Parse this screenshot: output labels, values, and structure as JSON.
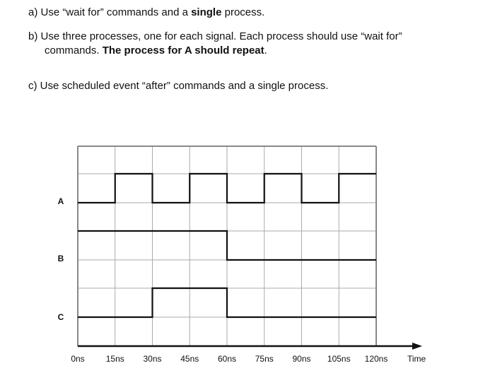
{
  "questions": {
    "a": {
      "pre": "a) Use “wait for” commands and a ",
      "bold": "single",
      "post": " process."
    },
    "b": {
      "line1": "b) Use three processes, one for each signal. Each process should use “wait for”",
      "line2_pre": "commands. ",
      "line2_bold": "The process for A should repeat",
      "line2_post": "."
    },
    "c": {
      "text": "c) Use scheduled event “after” commands and a single process."
    }
  },
  "chart_data": {
    "type": "line",
    "step": true,
    "xlabel": "Time",
    "x_ticks": [
      "0ns",
      "15ns",
      "30ns",
      "45ns",
      "60ns",
      "75ns",
      "90ns",
      "105ns",
      "120ns"
    ],
    "xlim": [
      0,
      120
    ],
    "grid": true,
    "series": [
      {
        "name": "A",
        "t": [
          0,
          15,
          30,
          45,
          60,
          75,
          90,
          105,
          120
        ],
        "values": [
          0,
          1,
          0,
          1,
          0,
          1,
          0,
          1,
          1
        ]
      },
      {
        "name": "B",
        "t": [
          0,
          60,
          120
        ],
        "values": [
          1,
          0,
          0
        ]
      },
      {
        "name": "C",
        "t": [
          0,
          30,
          60,
          120
        ],
        "values": [
          0,
          1,
          0,
          0
        ]
      }
    ]
  }
}
